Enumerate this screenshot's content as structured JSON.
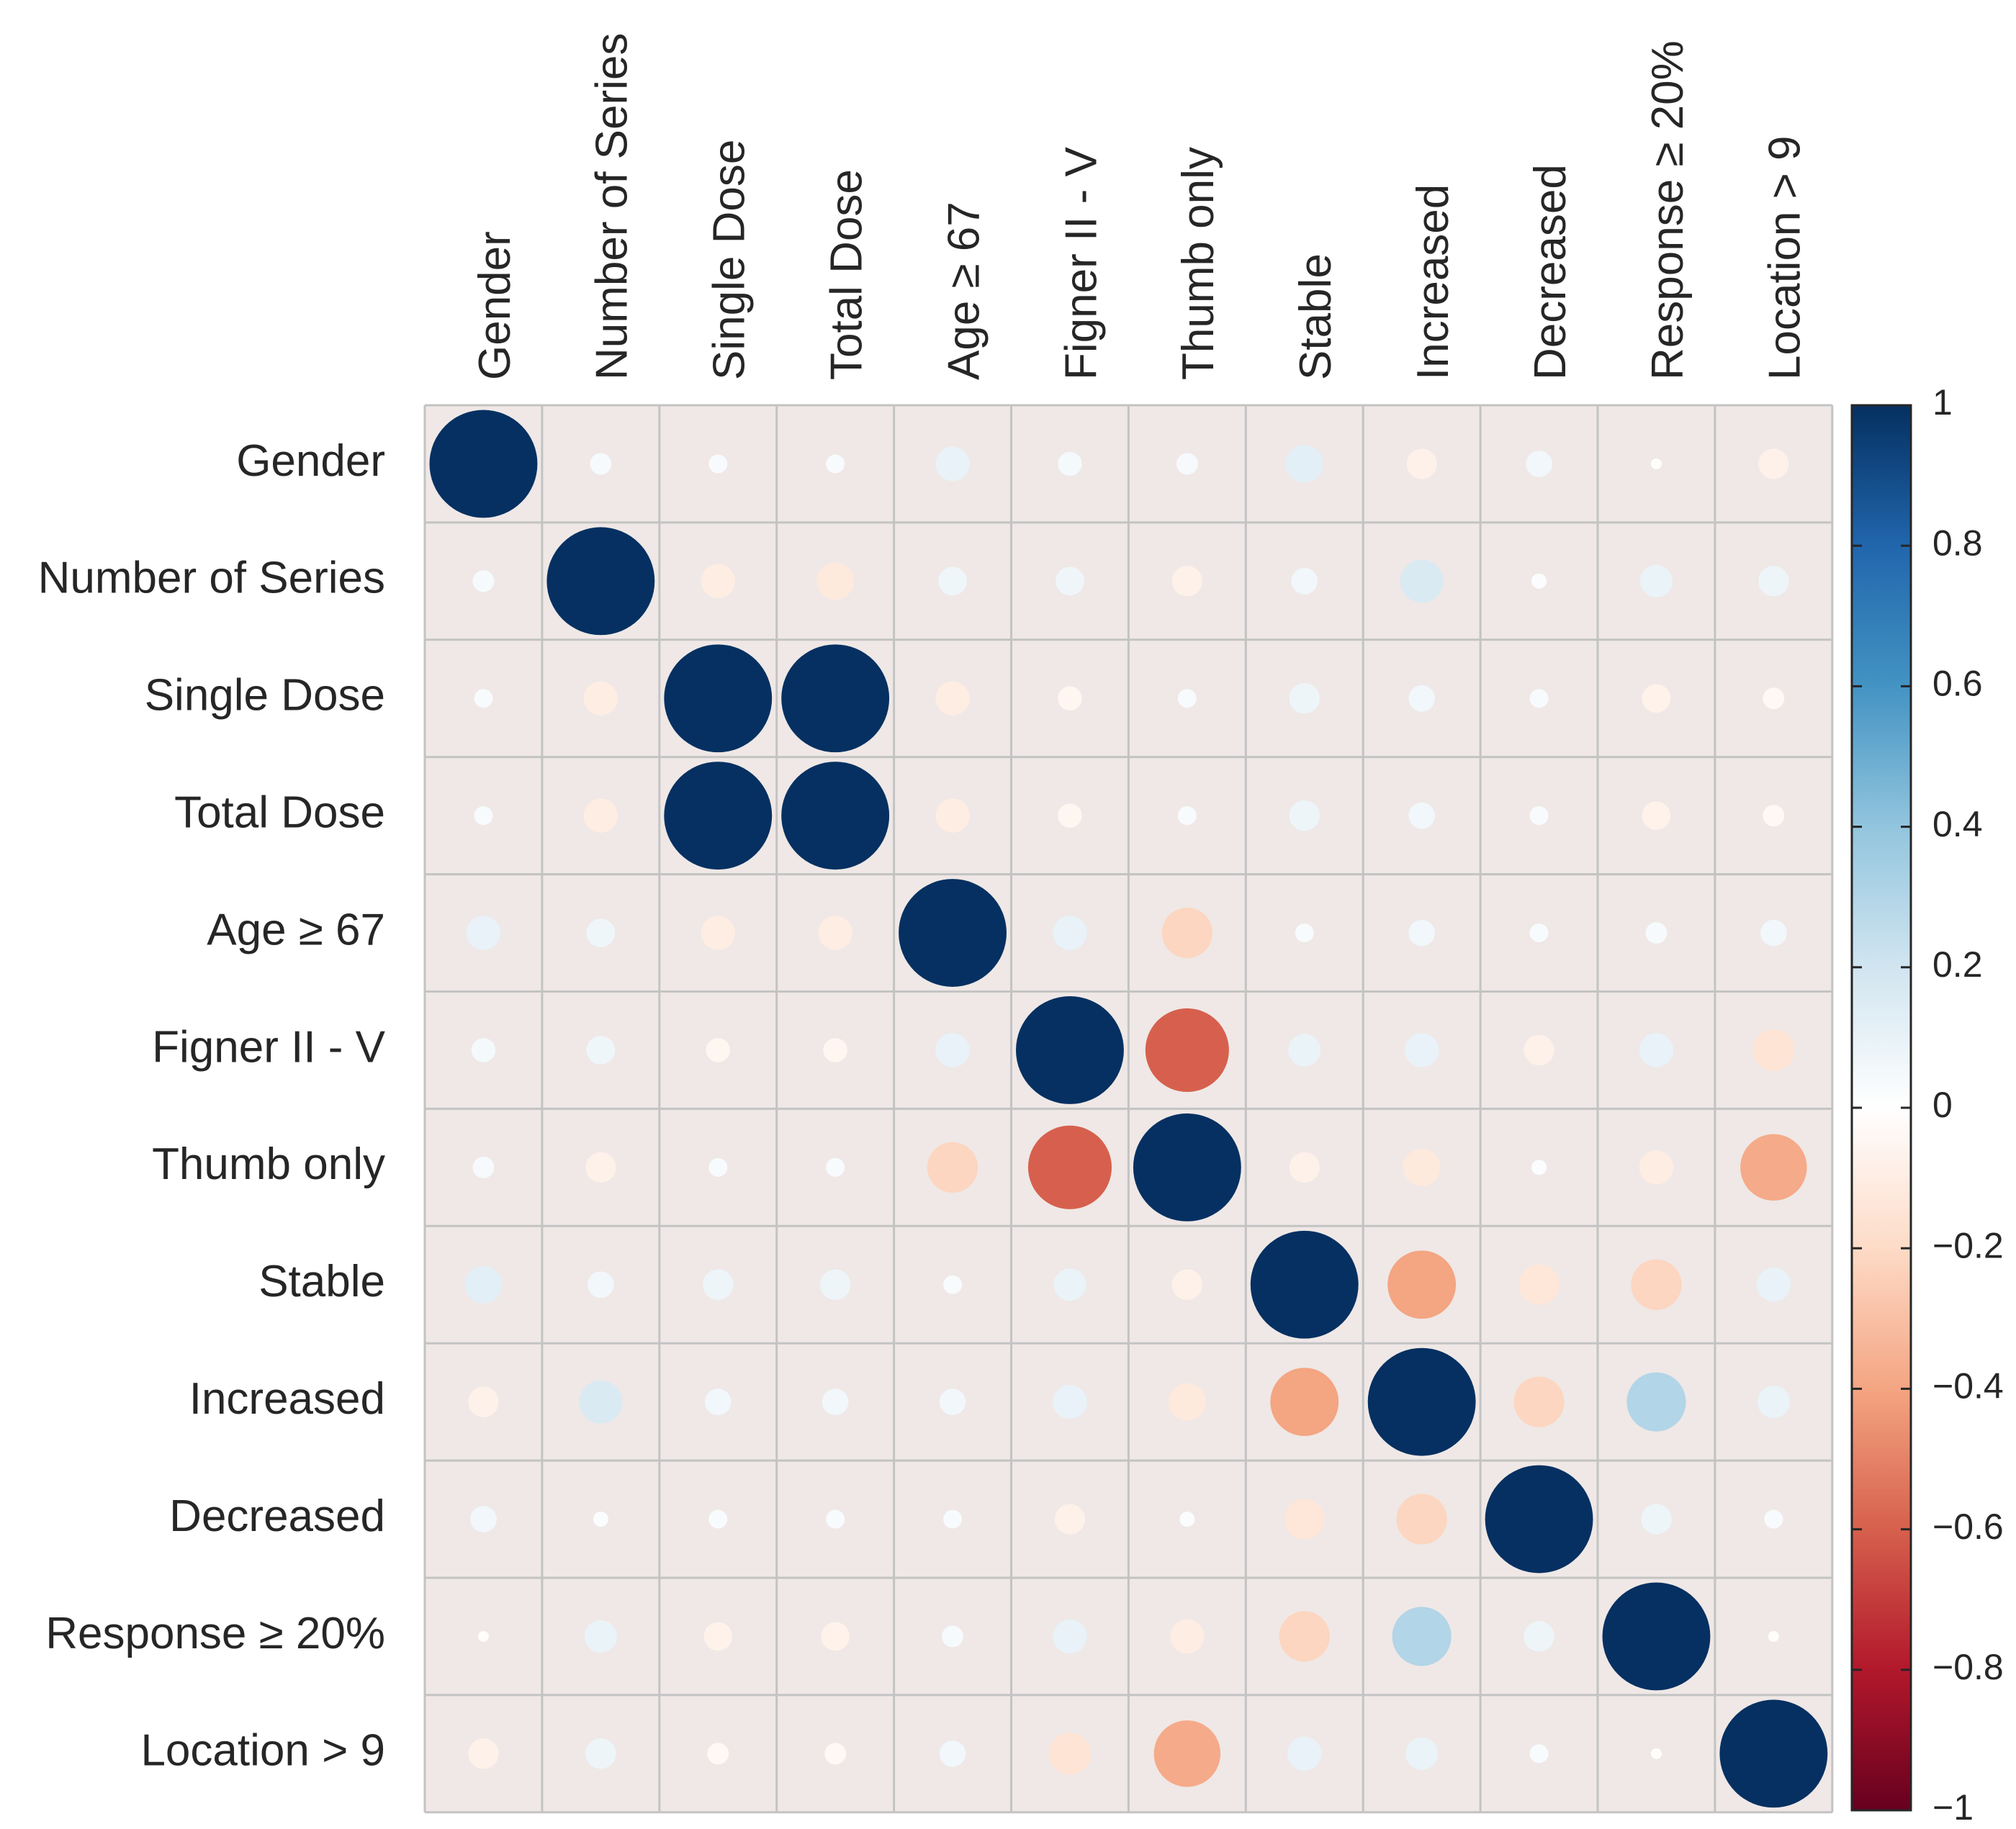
{
  "chart_data": {
    "type": "heatmap",
    "subtype": "correlation-circle-matrix",
    "title": "",
    "variables": [
      "Gender",
      "Number of Series",
      "Single Dose",
      "Total Dose",
      "Age ≥ 67",
      "Figner II - V",
      "Thumb only",
      "Stable",
      "Increased",
      "Decreased",
      "Response ≥ 20%",
      "Location > 9"
    ],
    "column_labels": [
      "Gender",
      "Number of Series",
      "Single Dose",
      "Total Dose",
      "Age ≥ 67",
      "Figner II - V",
      "Thumb only",
      "Stable",
      "Increased",
      "Decreased",
      "Response ≥ 20%",
      "Location > 9"
    ],
    "row_labels": [
      "Gender",
      "Number of Series",
      "Single Dose",
      "Total Dose",
      "Age ≥ 67",
      "Figner II - V",
      "Thumb only",
      "Stable",
      "Increased",
      "Decreased",
      "Response ≥ 20%",
      "Location > 9"
    ],
    "matrix": [
      [
        1.0,
        0.04,
        0.03,
        0.03,
        0.1,
        0.05,
        0.04,
        0.12,
        -0.08,
        0.06,
        -0.01,
        -0.08
      ],
      [
        0.04,
        1.0,
        -0.1,
        -0.12,
        0.07,
        0.07,
        -0.08,
        0.06,
        0.16,
        0.02,
        0.09,
        0.08
      ],
      [
        0.03,
        -0.1,
        1.0,
        1.0,
        -0.1,
        -0.05,
        0.03,
        0.08,
        0.06,
        0.03,
        -0.07,
        -0.04
      ],
      [
        0.03,
        -0.1,
        1.0,
        1.0,
        -0.1,
        -0.05,
        0.03,
        0.08,
        0.06,
        0.03,
        -0.07,
        -0.04
      ],
      [
        0.1,
        0.07,
        -0.1,
        -0.1,
        1.0,
        0.1,
        -0.22,
        0.03,
        0.06,
        0.03,
        0.04,
        0.06
      ],
      [
        0.05,
        0.07,
        -0.05,
        -0.05,
        0.1,
        1.0,
        -0.6,
        0.09,
        0.1,
        -0.08,
        0.1,
        -0.15
      ],
      [
        0.04,
        -0.08,
        0.03,
        0.03,
        -0.22,
        -0.6,
        1.0,
        -0.08,
        -0.12,
        0.02,
        -0.1,
        -0.38
      ],
      [
        0.12,
        0.06,
        0.08,
        0.08,
        0.03,
        0.09,
        -0.08,
        1.0,
        -0.4,
        -0.14,
        -0.22,
        0.1
      ],
      [
        -0.08,
        0.16,
        0.06,
        0.06,
        0.06,
        0.1,
        -0.12,
        -0.4,
        1.0,
        -0.22,
        0.3,
        0.09
      ],
      [
        0.06,
        0.02,
        0.03,
        0.03,
        0.03,
        -0.08,
        0.02,
        -0.14,
        -0.22,
        1.0,
        0.08,
        0.03
      ],
      [
        -0.01,
        0.09,
        -0.07,
        -0.07,
        0.04,
        0.1,
        -0.1,
        -0.22,
        0.3,
        0.08,
        1.0,
        -0.01
      ],
      [
        -0.08,
        0.08,
        -0.04,
        -0.04,
        0.06,
        -0.15,
        -0.38,
        0.1,
        0.09,
        0.03,
        -0.01,
        1.0
      ]
    ],
    "value_range": [
      -1,
      1
    ],
    "colorbar": {
      "ticks": [
        1,
        0.8,
        0.6,
        0.4,
        0.2,
        0,
        -0.2,
        -0.4,
        -0.6,
        -0.8,
        -1
      ],
      "tick_labels": [
        "1",
        "0.8",
        "0.6",
        "0.4",
        "0.2",
        "0",
        "−0.2",
        "−0.4",
        "−0.6",
        "−0.8",
        "−1"
      ],
      "placement": "right"
    },
    "colors": {
      "cell_background": "#efe8e6",
      "grid_line": "#c3c3c3",
      "scale": [
        "#67001f",
        "#b2182b",
        "#d6604d",
        "#f4a582",
        "#fddbc7",
        "#ffffff",
        "#d1e5f0",
        "#92c5de",
        "#4393c3",
        "#2166ac",
        "#053061"
      ]
    },
    "xlabel": "",
    "ylabel": "",
    "grid": true
  }
}
